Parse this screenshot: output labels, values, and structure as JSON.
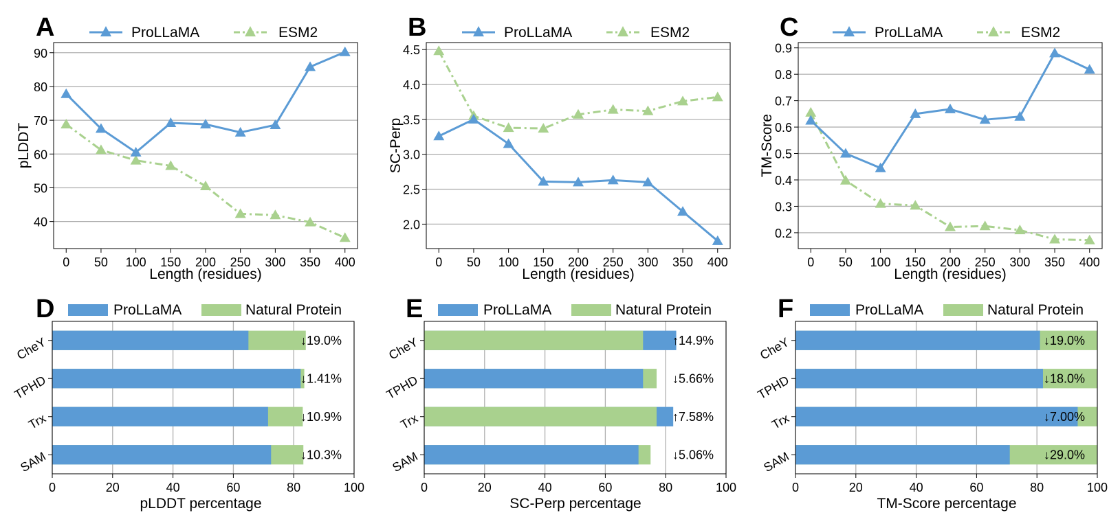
{
  "colors": {
    "prollama": "#5b9bd5",
    "esm2": "#a9d18e",
    "grid": "#b0b0b0",
    "axis": "#000000"
  },
  "chart_data": [
    {
      "panel": "A",
      "type": "line",
      "xlabel": "Length (residues)",
      "ylabel": "pLDDT",
      "xlim": [
        -18,
        418
      ],
      "ylim": [
        32,
        93
      ],
      "xticks": [
        0,
        50,
        100,
        150,
        200,
        250,
        300,
        350,
        400
      ],
      "yticks": [
        40,
        50,
        60,
        70,
        80,
        90
      ],
      "grid": "horizontal",
      "legend": "top",
      "x": [
        0,
        50,
        100,
        150,
        200,
        250,
        300,
        350,
        400
      ],
      "series": [
        {
          "name": "ProLLaMA",
          "style": "solid",
          "values": [
            77.8,
            67.5,
            60.5,
            69.2,
            68.8,
            66.4,
            68.6,
            85.8,
            90.2
          ]
        },
        {
          "name": "ESM2",
          "style": "dashdot",
          "values": [
            68.8,
            61.2,
            58.1,
            56.5,
            50.5,
            42.3,
            41.9,
            39.8,
            35.2
          ]
        }
      ]
    },
    {
      "panel": "B",
      "type": "line",
      "xlabel": "Length (residues)",
      "ylabel": "SC-Perp",
      "xlim": [
        -18,
        418
      ],
      "ylim": [
        1.65,
        4.6
      ],
      "xticks": [
        0,
        50,
        100,
        150,
        200,
        250,
        300,
        350,
        400
      ],
      "yticks": [
        2.0,
        2.5,
        3.0,
        3.5,
        4.0,
        4.5
      ],
      "ytick_labels": [
        "2.0",
        "2.5",
        "3.0",
        "3.5",
        "4.0",
        "4.5"
      ],
      "grid": "horizontal",
      "legend": "top",
      "x": [
        0,
        50,
        100,
        150,
        200,
        250,
        300,
        350,
        400
      ],
      "series": [
        {
          "name": "ProLLaMA",
          "style": "solid",
          "values": [
            3.26,
            3.5,
            3.15,
            2.61,
            2.6,
            2.63,
            2.6,
            2.18,
            1.76
          ]
        },
        {
          "name": "ESM2",
          "style": "dashdot",
          "values": [
            4.48,
            3.55,
            3.38,
            3.37,
            3.57,
            3.64,
            3.62,
            3.76,
            3.82
          ]
        }
      ]
    },
    {
      "panel": "C",
      "type": "line",
      "xlabel": "Length (residues)",
      "ylabel": "TM-Score",
      "xlim": [
        -18,
        418
      ],
      "ylim": [
        0.14,
        0.92
      ],
      "xticks": [
        0,
        50,
        100,
        150,
        200,
        250,
        300,
        350,
        400
      ],
      "yticks": [
        0.2,
        0.3,
        0.4,
        0.5,
        0.6,
        0.7,
        0.8,
        0.9
      ],
      "ytick_labels": [
        "0.2",
        "0.3",
        "0.4",
        "0.5",
        "0.6",
        "0.7",
        "0.8",
        "0.9"
      ],
      "grid": "horizontal",
      "legend": "top",
      "x": [
        0,
        50,
        100,
        150,
        200,
        250,
        300,
        350,
        400
      ],
      "series": [
        {
          "name": "ProLLaMA",
          "style": "solid",
          "values": [
            0.625,
            0.5,
            0.445,
            0.65,
            0.668,
            0.628,
            0.64,
            0.88,
            0.818
          ]
        },
        {
          "name": "ESM2",
          "style": "dashdot",
          "values": [
            0.655,
            0.398,
            0.31,
            0.303,
            0.222,
            0.225,
            0.21,
            0.175,
            0.172
          ]
        }
      ]
    },
    {
      "panel": "D",
      "type": "bar",
      "xlabel": "pLDDT percentage",
      "xlim": [
        0,
        100
      ],
      "xticks": [
        0,
        20,
        40,
        60,
        80,
        100
      ],
      "grid": "vertical",
      "legend": "top",
      "categories": [
        "CheY",
        "TPHD",
        "Trx",
        "SAM"
      ],
      "series": [
        {
          "name": "ProLLaMA",
          "values": [
            65,
            82.3,
            71.5,
            72.5
          ]
        },
        {
          "name": "Natural Protein",
          "values": [
            84,
            83.5,
            83,
            83.2
          ]
        }
      ],
      "annotations": [
        "↓19.0%",
        "↓1.41%",
        "↓10.9%",
        "↓10.3%"
      ]
    },
    {
      "panel": "E",
      "type": "bar",
      "xlabel": "SC-Perp percentage",
      "xlim": [
        0,
        100
      ],
      "xticks": [
        0,
        20,
        40,
        60,
        80,
        100
      ],
      "grid": "vertical",
      "legend": "top",
      "categories": [
        "CheY",
        "TPHD",
        "Trx",
        "SAM"
      ],
      "series": [
        {
          "name": "ProLLaMA",
          "values": [
            83.5,
            72.5,
            82.5,
            71
          ]
        },
        {
          "name": "Natural Protein",
          "values": [
            72.5,
            77,
            77,
            75
          ]
        }
      ],
      "annotations": [
        "↑14.9%",
        "↓5.66%",
        "↑7.58%",
        "↓5.06%"
      ]
    },
    {
      "panel": "F",
      "type": "bar",
      "xlabel": "TM-Score percentage",
      "xlim": [
        0,
        100
      ],
      "xticks": [
        0,
        20,
        40,
        60,
        80,
        100
      ],
      "grid": "vertical",
      "legend": "top",
      "categories": [
        "CheY",
        "TPHD",
        "Trx",
        "SAM"
      ],
      "series": [
        {
          "name": "ProLLaMA",
          "values": [
            81,
            82,
            93.5,
            71
          ]
        },
        {
          "name": "Natural Protein",
          "values": [
            100,
            100,
            100,
            100
          ]
        }
      ],
      "annotations": [
        "↓19.0%",
        "↓18.0%",
        "↓7.00%",
        "↓29.0%"
      ]
    }
  ]
}
